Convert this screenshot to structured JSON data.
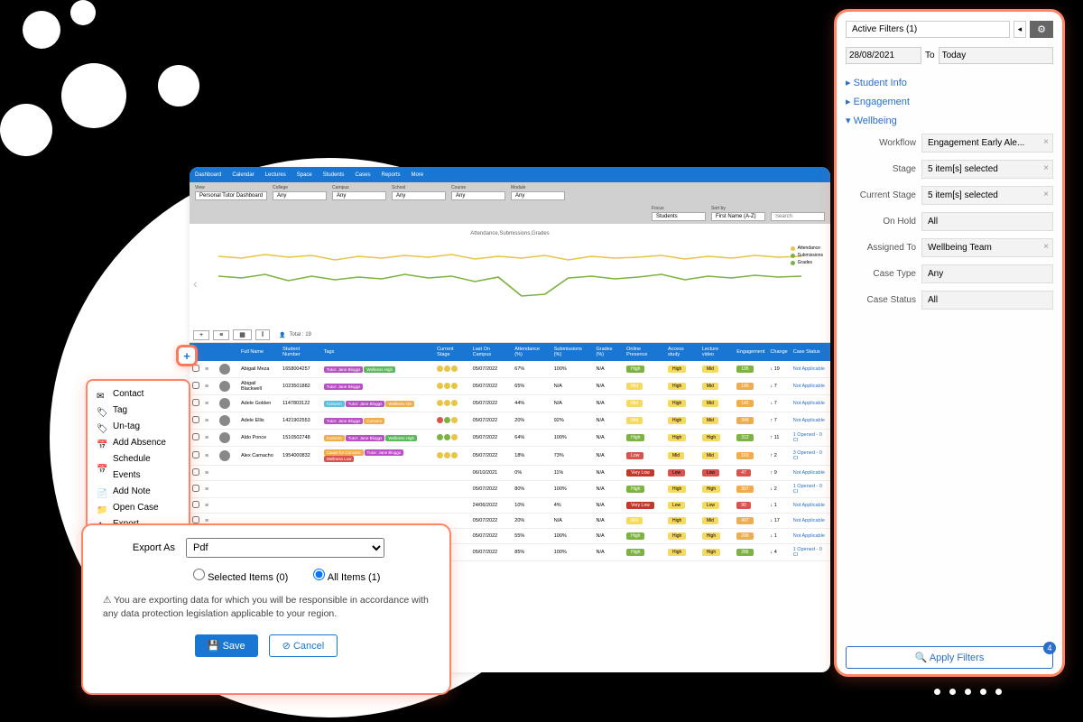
{
  "topnav": {
    "items": [
      "Dashboard",
      "Calendar",
      "Lectures",
      "Space",
      "Students",
      "Cases",
      "Reports",
      "More"
    ]
  },
  "filterbar": {
    "view": {
      "label": "View",
      "value": "Personal Tutor Dashboard"
    },
    "college": {
      "label": "College",
      "value": "Any"
    },
    "campus": {
      "label": "Campus",
      "value": "Any"
    },
    "school": {
      "label": "School",
      "value": "Any"
    },
    "course": {
      "label": "Course",
      "value": "Any"
    },
    "module": {
      "label": "Module",
      "value": "Any"
    },
    "focus": {
      "label": "Focus",
      "value": "Students"
    },
    "sortby": {
      "label": "Sort by",
      "value": "First Name (A-Z)"
    },
    "search": {
      "label": "",
      "placeholder": "Search"
    }
  },
  "chart": {
    "title": "Attendance,Submissions,Grades",
    "legend": [
      {
        "label": "Attendance",
        "color": "#e8c547"
      },
      {
        "label": "Submissions",
        "color": "#7cb342"
      },
      {
        "label": "Grades",
        "color": "#7cb342"
      }
    ]
  },
  "toolbar": {
    "total": "Total : 19"
  },
  "columns": [
    "",
    "",
    "",
    "",
    "Full Name",
    "Student Number",
    "Tags",
    "Current Stage",
    "Last On Campus",
    "Attendance (%)",
    "Submissions (%)",
    "Grades (%)",
    "Online Presence",
    "Access study",
    "Lecture video",
    "Engagement",
    "Change",
    "Case Status"
  ],
  "rows": [
    {
      "name": "Abigail Meza",
      "num": "1658004257",
      "tags": [
        {
          "t": "Tutor: Jane Bloggs",
          "c": "#b84fc4"
        },
        {
          "t": "Wellness High",
          "c": "#5cb85c"
        }
      ],
      "stage": [
        "#e8c547",
        "#e8c547",
        "#e8c547"
      ],
      "last": "05/07/2022",
      "att": "67%",
      "sub": "100%",
      "grd": "N/A",
      "online": {
        "t": "High",
        "c": "#7cb342"
      },
      "access": {
        "t": "High",
        "c": "#f5d960"
      },
      "lecture": {
        "t": "Mid",
        "c": "#f5d960"
      },
      "eng": {
        "t": "195",
        "c": "#7cb342"
      },
      "chg": "↓ 19",
      "case": "Not Applicable"
    },
    {
      "name": "Abigail Blackwell",
      "num": "1023501882",
      "tags": [
        {
          "t": "Tutor: Jane Bloggs",
          "c": "#b84fc4"
        }
      ],
      "stage": [
        "#e8c547",
        "#e8c547",
        "#e8c547"
      ],
      "last": "05/07/2022",
      "att": "65%",
      "sub": "N/A",
      "grd": "N/A",
      "online": {
        "t": "Mid",
        "c": "#f5d960"
      },
      "access": {
        "t": "High",
        "c": "#f5d960"
      },
      "lecture": {
        "t": "Mid",
        "c": "#f5d960"
      },
      "eng": {
        "t": "195",
        "c": "#f0ad4e"
      },
      "chg": "↓ 7",
      "case": "Not Applicable"
    },
    {
      "name": "Adele Golden",
      "num": "1147803122",
      "tags": [
        {
          "t": "Concern",
          "c": "#5bc0de"
        },
        {
          "t": "Tutor: Jane Bloggs",
          "c": "#b84fc4"
        },
        {
          "t": "Wellness OK",
          "c": "#f0ad4e"
        }
      ],
      "stage": [
        "#e8c547",
        "#e8c547",
        "#e8c547"
      ],
      "last": "05/07/2022",
      "att": "44%",
      "sub": "N/A",
      "grd": "N/A",
      "online": {
        "t": "Mid",
        "c": "#f5d960"
      },
      "access": {
        "t": "High",
        "c": "#f5d960"
      },
      "lecture": {
        "t": "Mid",
        "c": "#f5d960"
      },
      "eng": {
        "t": "142",
        "c": "#f0ad4e"
      },
      "chg": "↓ 7",
      "case": "Not Applicable"
    },
    {
      "name": "Adele Ellis",
      "num": "1421902553",
      "tags": [
        {
          "t": "Tutor: Jane Bloggs",
          "c": "#b84fc4"
        },
        {
          "t": "Concern",
          "c": "#f0ad4e"
        }
      ],
      "stage": [
        "#d9534f",
        "#7cb342",
        "#e8c547"
      ],
      "last": "05/07/2022",
      "att": "20%",
      "sub": "92%",
      "grd": "N/A",
      "online": {
        "t": "Mid",
        "c": "#f5d960"
      },
      "access": {
        "t": "High",
        "c": "#f5d960"
      },
      "lecture": {
        "t": "Mid",
        "c": "#f5d960"
      },
      "eng": {
        "t": "349",
        "c": "#f0ad4e"
      },
      "chg": "↑ 7",
      "case": "Not Applicable"
    },
    {
      "name": "Aldo Ponce",
      "num": "1510502748",
      "tags": [
        {
          "t": "Concern",
          "c": "#f0ad4e"
        },
        {
          "t": "Tutor: Jane Bloggs",
          "c": "#b84fc4"
        },
        {
          "t": "Wellness High",
          "c": "#5cb85c"
        }
      ],
      "stage": [
        "#7cb342",
        "#7cb342",
        "#e8c547"
      ],
      "last": "05/07/2022",
      "att": "64%",
      "sub": "100%",
      "grd": "N/A",
      "online": {
        "t": "High",
        "c": "#7cb342"
      },
      "access": {
        "t": "High",
        "c": "#f5d960"
      },
      "lecture": {
        "t": "High",
        "c": "#f5d960"
      },
      "eng": {
        "t": "312",
        "c": "#7cb342"
      },
      "chg": "↑ 11",
      "case": "1 Opened - 0 Cl"
    },
    {
      "name": "Alex Camacho",
      "num": "1954000832",
      "tags": [
        {
          "t": "Cause for Concern",
          "c": "#f0ad4e"
        },
        {
          "t": "Tutor: Jane Bloggs",
          "c": "#b84fc4"
        },
        {
          "t": "Wellness Low",
          "c": "#d9534f"
        }
      ],
      "stage": [
        "#e8c547",
        "#e8c547",
        "#e8c547"
      ],
      "last": "05/07/2022",
      "att": "18%",
      "sub": "73%",
      "grd": "N/A",
      "online": {
        "t": "Low",
        "c": "#d9534f"
      },
      "access": {
        "t": "Mid",
        "c": "#f5d960"
      },
      "lecture": {
        "t": "Mid",
        "c": "#f5d960"
      },
      "eng": {
        "t": "163",
        "c": "#f0ad4e"
      },
      "chg": "↑ 2",
      "case": "3 Opened - 0 Cl"
    },
    {
      "name": "",
      "num": "",
      "tags": [],
      "stage": [],
      "last": "06/10/2021",
      "att": "0%",
      "sub": "11%",
      "grd": "N/A",
      "online": {
        "t": "Very Low",
        "c": "#c0392b"
      },
      "access": {
        "t": "Low",
        "c": "#d9534f"
      },
      "lecture": {
        "t": "Low",
        "c": "#d9534f"
      },
      "eng": {
        "t": "47",
        "c": "#d9534f"
      },
      "chg": "↑ 9",
      "case": "Not Applicable"
    },
    {
      "name": "",
      "num": "",
      "tags": [],
      "stage": [],
      "last": "05/07/2022",
      "att": "80%",
      "sub": "100%",
      "grd": "N/A",
      "online": {
        "t": "High",
        "c": "#7cb342"
      },
      "access": {
        "t": "High",
        "c": "#f5d960"
      },
      "lecture": {
        "t": "High",
        "c": "#f5d960"
      },
      "eng": {
        "t": "307",
        "c": "#f0ad4e"
      },
      "chg": "↓ 2",
      "case": "1 Opened - 0 Cl"
    },
    {
      "name": "",
      "num": "",
      "tags": [],
      "stage": [],
      "last": "24/06/2022",
      "att": "10%",
      "sub": "4%",
      "grd": "N/A",
      "online": {
        "t": "Very Low",
        "c": "#c0392b"
      },
      "access": {
        "t": "Low",
        "c": "#f5d960"
      },
      "lecture": {
        "t": "Low",
        "c": "#f5d960"
      },
      "eng": {
        "t": "90",
        "c": "#d9534f"
      },
      "chg": "↓ 1",
      "case": "Not Applicable"
    },
    {
      "name": "",
      "num": "",
      "tags": [],
      "stage": [],
      "last": "05/07/2022",
      "att": "20%",
      "sub": "N/A",
      "grd": "N/A",
      "online": {
        "t": "Mid",
        "c": "#f5d960"
      },
      "access": {
        "t": "High",
        "c": "#f5d960"
      },
      "lecture": {
        "t": "Mid",
        "c": "#f5d960"
      },
      "eng": {
        "t": "407",
        "c": "#f0ad4e"
      },
      "chg": "↓ 17",
      "case": "Not Applicable"
    },
    {
      "name": "",
      "num": "",
      "tags": [],
      "stage": [],
      "last": "05/07/2022",
      "att": "55%",
      "sub": "100%",
      "grd": "N/A",
      "online": {
        "t": "High",
        "c": "#7cb342"
      },
      "access": {
        "t": "High",
        "c": "#f5d960"
      },
      "lecture": {
        "t": "High",
        "c": "#f5d960"
      },
      "eng": {
        "t": "298",
        "c": "#f0ad4e"
      },
      "chg": "↓ 1",
      "case": "Not Applicable"
    },
    {
      "name": "",
      "num": "",
      "tags": [],
      "stage": [],
      "last": "05/07/2022",
      "att": "85%",
      "sub": "100%",
      "grd": "N/A",
      "online": {
        "t": "High",
        "c": "#7cb342"
      },
      "access": {
        "t": "High",
        "c": "#f5d960"
      },
      "lecture": {
        "t": "High",
        "c": "#f5d960"
      },
      "eng": {
        "t": "286",
        "c": "#7cb342"
      },
      "chg": "↓ 4",
      "case": "1 Opened - 0 Cl"
    }
  ],
  "ctxmenu": [
    {
      "icon": "✉",
      "label": "Contact"
    },
    {
      "icon": "🏷",
      "label": "Tag"
    },
    {
      "icon": "🏷",
      "label": "Un-tag"
    },
    {
      "icon": "📅",
      "label": "Add Absence"
    },
    {
      "icon": "📅",
      "label": "Schedule Events"
    },
    {
      "icon": "📄",
      "label": "Add Note"
    },
    {
      "icon": "📁",
      "label": "Open Case"
    },
    {
      "icon": "⬆",
      "label": "Export"
    }
  ],
  "export": {
    "label": "Export As",
    "format": "Pdf",
    "selected": "Selected Items (0)",
    "all": "All Items (1)",
    "warning": "You are exporting data for which you will be responsible in accordance with any data protection legislation applicable to your region.",
    "save": "Save",
    "cancel": "Cancel"
  },
  "filters": {
    "active": "Active Filters (1)",
    "from": "28/08/2021",
    "to_label": "To",
    "to": "Today",
    "sections": [
      "Student Info",
      "Engagement",
      "Wellbeing"
    ],
    "fields": [
      {
        "label": "Workflow",
        "value": "Engagement Early Ale...",
        "x": true
      },
      {
        "label": "Stage",
        "value": "5 item[s] selected",
        "x": true
      },
      {
        "label": "Current Stage",
        "value": "5 item[s] selected",
        "x": true
      },
      {
        "label": "On Hold",
        "value": "All",
        "x": false
      },
      {
        "label": "Assigned To",
        "value": "Wellbeing Team",
        "x": true
      },
      {
        "label": "Case Type",
        "value": "Any",
        "x": false
      },
      {
        "label": "Case Status",
        "value": "All",
        "x": false
      }
    ],
    "apply": "Apply Filters",
    "badge": "4"
  }
}
